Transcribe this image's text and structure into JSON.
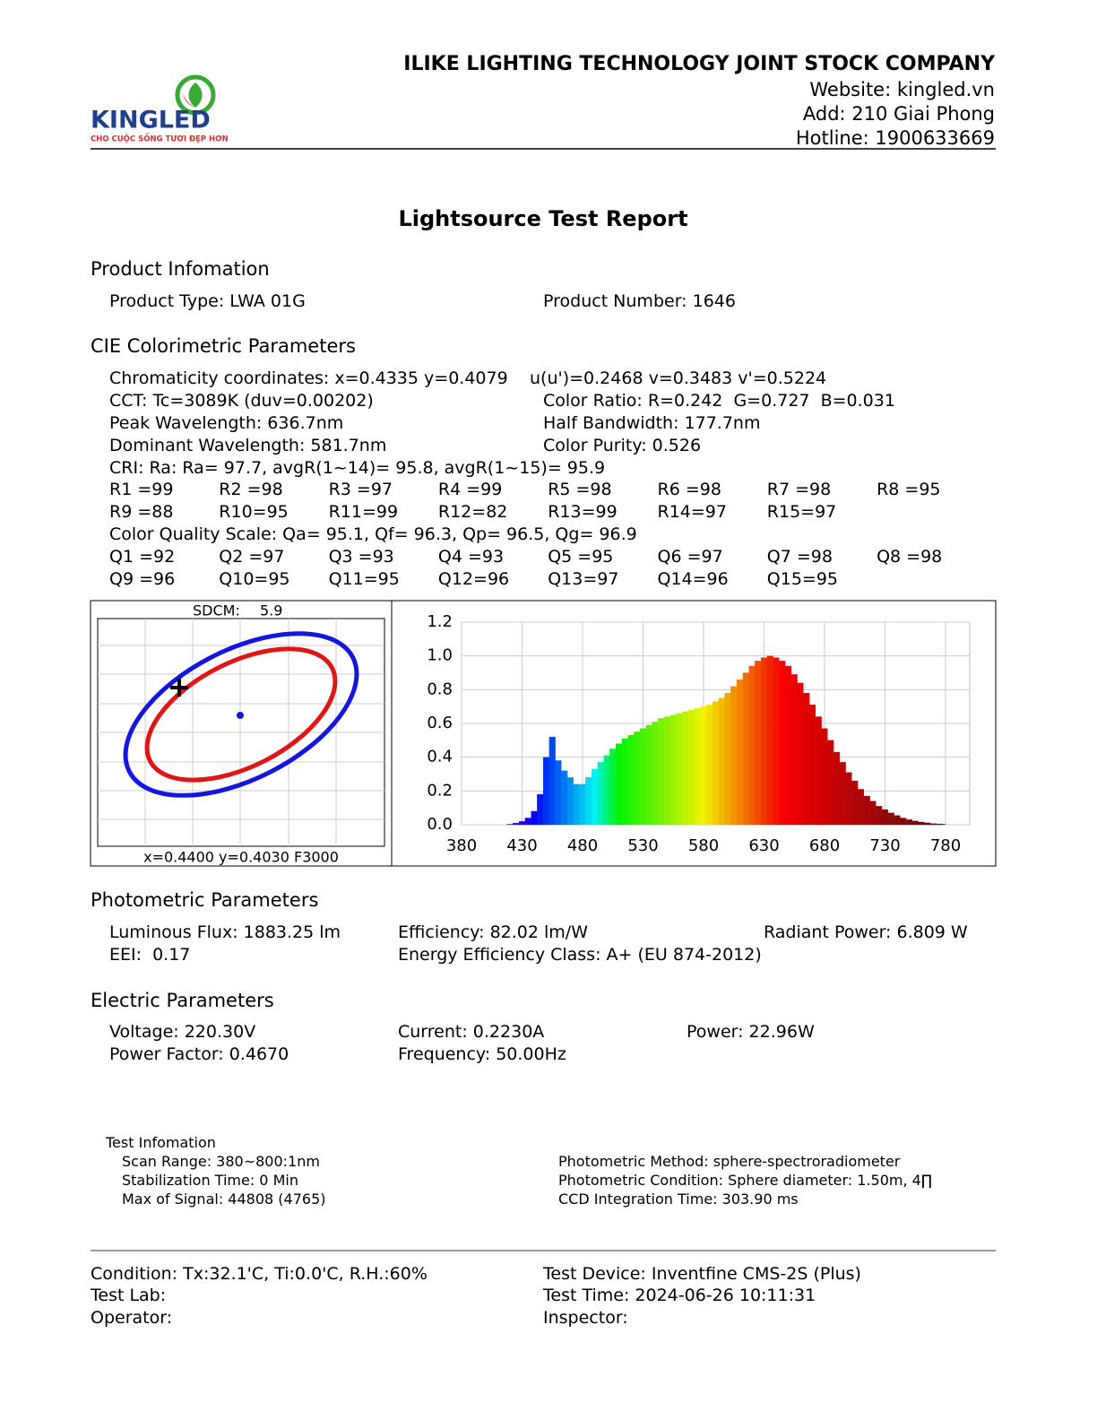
{
  "header": {
    "company": "ILIKE LIGHTING TECHNOLOGY JOINT STOCK COMPANY",
    "website": "Website: kingled.vn",
    "address": "Add: 210 Giai Phong",
    "hotline": "Hotline: 1900633669",
    "logo": {
      "name": "KINGLED",
      "tagline": "CHO CUỘC SỐNG TƯƠI ĐẸP HƠN"
    }
  },
  "title": "Lightsource Test Report",
  "product": {
    "heading": "Product Infomation",
    "type": "Product Type: LWA 01G",
    "number": "Product Number: 1646"
  },
  "cie": {
    "heading": "CIE Colorimetric Parameters",
    "chromaticity": "Chromaticity coordinates: x=0.4335 y=0.4079",
    "uv": "u(u')=0.2468 v=0.3483 v'=0.5224",
    "cct": "CCT: Tc=3089K (duv=0.00202)",
    "color_ratio": "Color Ratio: R=0.242  G=0.727  B=0.031",
    "peak": "Peak Wavelength: 636.7nm",
    "half_bandwidth": "Half Bandwidth: 177.7nm",
    "dominant": "Dominant Wavelength: 581.7nm",
    "purity": "Color Purity: 0.526",
    "cri": "CRI: Ra: Ra= 97.7, avgR(1~14)= 95.8, avgR(1~15)= 95.9",
    "r_values": [
      "R1 =99",
      "R2 =98",
      "R3 =97",
      "R4 =99",
      "R5 =98",
      "R6 =98",
      "R7 =98",
      "R8 =95",
      "R9 =88",
      "R10=95",
      "R11=99",
      "R12=82",
      "R13=99",
      "R14=97",
      "R15=97"
    ],
    "cqs": "Color Quality Scale: Qa= 95.1, Qf= 96.3, Qp= 96.5, Qg= 96.9",
    "q_values": [
      "Q1 =92",
      "Q2 =97",
      "Q3 =93",
      "Q4 =93",
      "Q5 =95",
      "Q6 =97",
      "Q7 =98",
      "Q8 =98",
      "Q9 =96",
      "Q10=95",
      "Q11=95",
      "Q12=96",
      "Q13=97",
      "Q14=96",
      "Q15=95"
    ]
  },
  "sdcm": {
    "label": "SDCM:",
    "value": "5.9",
    "caption": "x=0.4400 y=0.4030 F3000"
  },
  "chart_data": {
    "type": "bar",
    "x": [
      380,
      385,
      390,
      395,
      400,
      405,
      410,
      415,
      420,
      425,
      430,
      435,
      440,
      445,
      450,
      455,
      460,
      465,
      470,
      475,
      480,
      485,
      490,
      495,
      500,
      505,
      510,
      515,
      520,
      525,
      530,
      535,
      540,
      545,
      550,
      555,
      560,
      565,
      570,
      575,
      580,
      585,
      590,
      595,
      600,
      605,
      610,
      615,
      620,
      625,
      630,
      635,
      640,
      645,
      650,
      655,
      660,
      665,
      670,
      675,
      680,
      685,
      690,
      695,
      700,
      705,
      710,
      715,
      720,
      725,
      730,
      735,
      740,
      745,
      750,
      755,
      760,
      765,
      770,
      775,
      780
    ],
    "values": [
      0,
      0,
      0,
      0,
      0,
      0,
      0,
      0,
      0.003,
      0.01,
      0.02,
      0.04,
      0.08,
      0.18,
      0.4,
      0.52,
      0.38,
      0.32,
      0.28,
      0.24,
      0.24,
      0.28,
      0.33,
      0.37,
      0.41,
      0.45,
      0.48,
      0.51,
      0.53,
      0.55,
      0.57,
      0.59,
      0.61,
      0.63,
      0.64,
      0.65,
      0.66,
      0.67,
      0.68,
      0.69,
      0.7,
      0.71,
      0.73,
      0.75,
      0.78,
      0.82,
      0.86,
      0.9,
      0.94,
      0.97,
      0.99,
      1.0,
      0.99,
      0.97,
      0.94,
      0.89,
      0.84,
      0.78,
      0.71,
      0.64,
      0.57,
      0.5,
      0.43,
      0.37,
      0.31,
      0.26,
      0.21,
      0.17,
      0.14,
      0.11,
      0.09,
      0.07,
      0.055,
      0.04,
      0.03,
      0.022,
      0.016,
      0.011,
      0.007,
      0.005,
      0.003
    ],
    "xlim": [
      380,
      800
    ],
    "xticks": [
      380,
      430,
      480,
      530,
      580,
      630,
      680,
      730,
      780
    ],
    "ylim": [
      0,
      1.2
    ],
    "yticks": [
      {
        "value": 0,
        "label": "0.0"
      },
      {
        "value": 0.2,
        "label": "0.2"
      },
      {
        "value": 0.4,
        "label": "0.4"
      },
      {
        "value": 0.6,
        "label": "0.6"
      },
      {
        "value": 0.8,
        "label": "0.8"
      },
      {
        "value": 1,
        "label": "1.0"
      },
      {
        "value": 1.2,
        "label": "1.2"
      }
    ],
    "grid": true
  },
  "photometric": {
    "heading": "Photometric Parameters",
    "flux": "Luminous Flux: 1883.25 lm",
    "efficiency": "Efficiency: 82.02 lm/W",
    "radiant": "Radiant Power: 6.809 W",
    "eei": "EEI:  0.17",
    "class": "Energy Efficiency Class: A+ (EU 874-2012)"
  },
  "electric": {
    "heading": "Electric Parameters",
    "voltage": "Voltage: 220.30V",
    "current": "Current: 0.2230A",
    "power": "Power: 22.96W",
    "pf": "Power Factor: 0.4670",
    "frequency": "Frequency: 50.00Hz"
  },
  "test_info": {
    "heading": "Test Infomation",
    "scan": "Scan Range: 380~800:1nm",
    "stabilization": "Stabilization Time: 0 Min",
    "signal": "Max of Signal: 44808 (4765)",
    "method": "Photometric Method: sphere-spectroradiometer",
    "condition": "Photometric Condition: Sphere diameter: 1.50m, 4∏",
    "ccd": "CCD Integration Time: 303.90 ms"
  },
  "footer": {
    "condition": "Condition: Tx:32.1'C, Ti:0.0'C, R.H.:60%",
    "lab": "Test Lab:",
    "operator": "Operator:",
    "device": "Test Device: Inventfine CMS-2S (Plus)",
    "time": "Test Time: 2024-06-26 10:11:31",
    "inspector": "Inspector:"
  }
}
